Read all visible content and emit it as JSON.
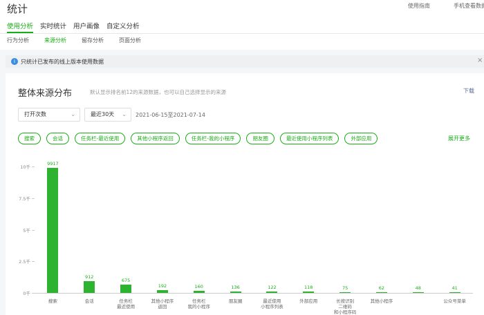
{
  "header": {
    "title": "统计",
    "links": [
      "使用指南",
      "手机查看数据"
    ]
  },
  "tabs": {
    "items": [
      "使用分析",
      "实时统计",
      "用户画像",
      "自定义分析"
    ],
    "active": 0
  },
  "subtabs": {
    "items": [
      "行为分析",
      "来源分析",
      "留存分析",
      "页面分析"
    ],
    "active": 1
  },
  "notice": "只统计已发布的线上版本使用数据",
  "card": {
    "title": "整体来源分布",
    "subtitle": "默认显示排名前12的来源数据，也可以自己选择显示的来源",
    "download": "下载",
    "selects": [
      "打开次数",
      "最近30天"
    ],
    "date_range": "2021-06-15至2021-07-14",
    "pills": [
      "搜索",
      "会话",
      "任务栏-最近使用",
      "其他小程序返回",
      "任务栏-我的小程序",
      "朋友圈",
      "最近使用小程序列表",
      "外部应用"
    ],
    "more": "展开更多"
  },
  "chart_data": {
    "type": "bar",
    "color": "#2db330",
    "categories": [
      "搜索",
      "会话",
      "任务栏\n最近使用",
      "其他小程序\n返回",
      "任务栏\n我的小程序",
      "朋友圈",
      "最近使用\n小程序列表",
      "外部应用",
      "长按识别\n二维码\n和小程序码",
      "其他小程序",
      null,
      "公众号菜单"
    ],
    "values": [
      9917,
      912,
      675,
      192,
      160,
      136,
      122,
      118,
      75,
      62,
      48,
      41
    ],
    "ylim": [
      0,
      10000
    ],
    "yticks": [
      {
        "value": 0,
        "label": "0千"
      },
      {
        "value": 2500,
        "label": "2.5千"
      },
      {
        "value": 5000,
        "label": "5千"
      },
      {
        "value": 7500,
        "label": "7.5千"
      },
      {
        "value": 10000,
        "label": "10千"
      }
    ]
  }
}
